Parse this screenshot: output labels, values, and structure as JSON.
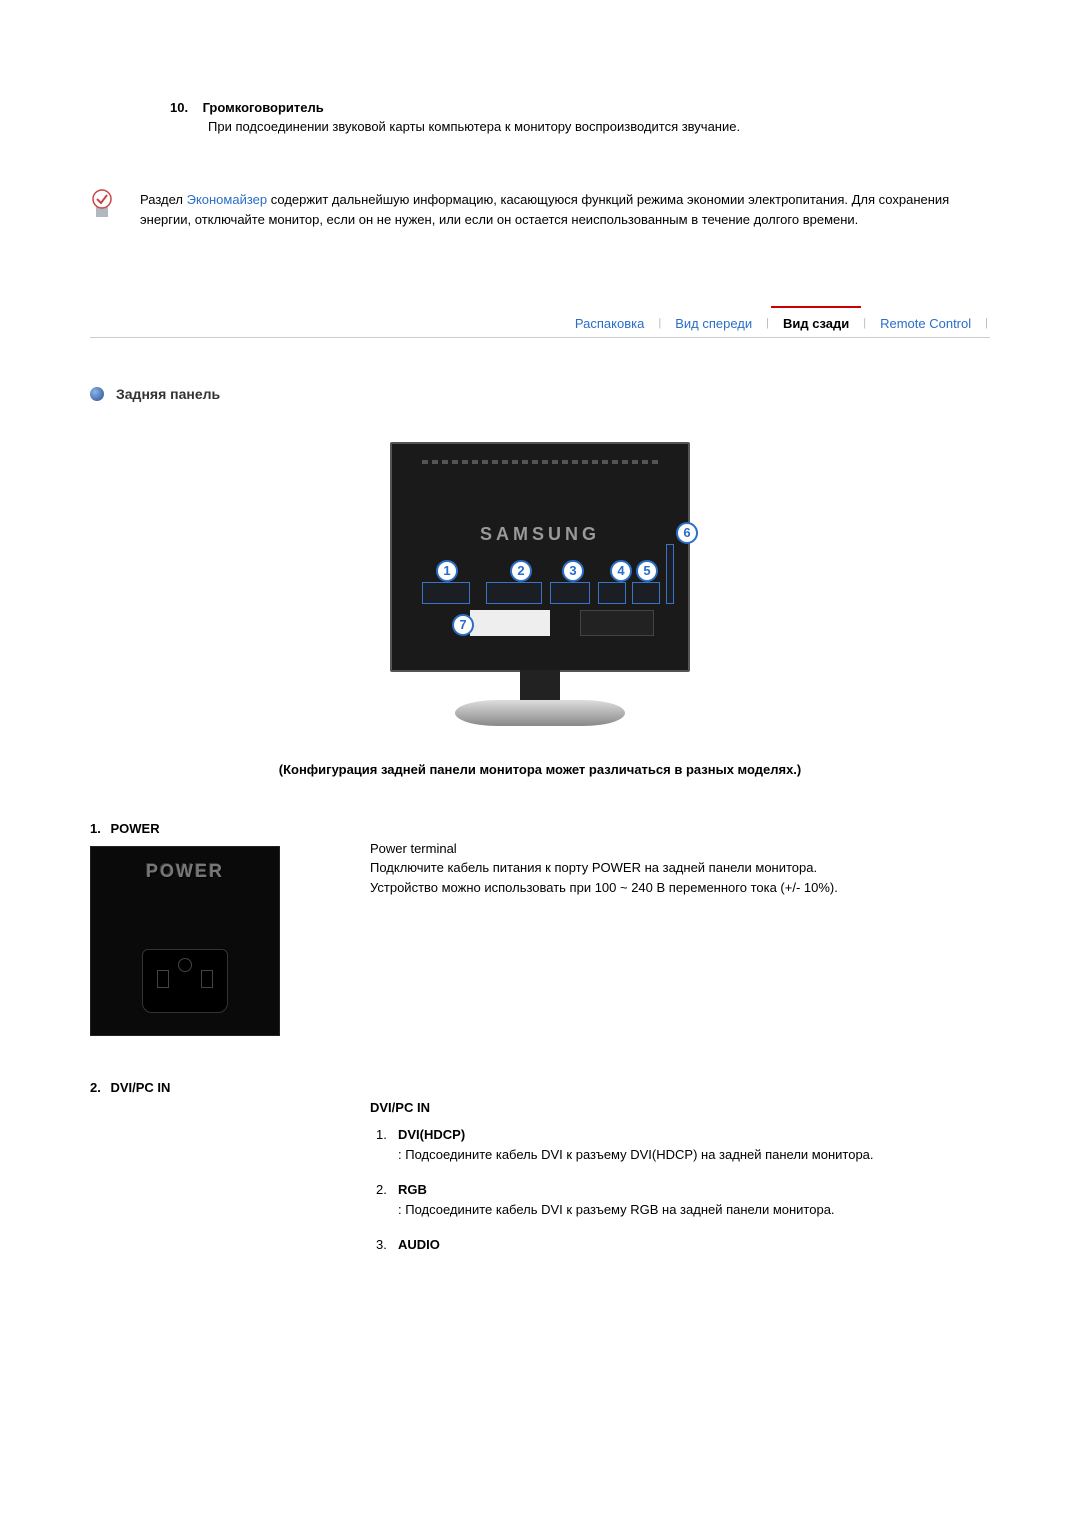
{
  "speaker": {
    "number": "10.",
    "title": "Громкоговоритель",
    "desc": "При подсоединении звуковой карты компьютера к монитору воспроизводится звучание."
  },
  "info": {
    "pre_text": "Раздел ",
    "link_text": "Экономайзер",
    "post_text": " содержит дальнейшую информацию, касающуюся функций режима экономии электропитания. Для сохранения энергии, отключайте монитор, если он не нужен, или если он остается неиспользованным в течение долгого времени."
  },
  "tabs": {
    "t1": "Распаковка",
    "t2": "Вид спереди",
    "t3": "Вид сзади",
    "t4": "Remote Control"
  },
  "section": {
    "title": "Задняя панель"
  },
  "monitor": {
    "brand": "SAMSUNG",
    "c1": "1",
    "c2": "2",
    "c3": "3",
    "c4": "4",
    "c5": "5",
    "c6": "6",
    "c7": "7"
  },
  "config_note": "(Конфигурация задней панели монитора может различаться в разных моделях.)",
  "power": {
    "num": "1.",
    "title": "POWER",
    "img_label": "POWER",
    "desc1": "Power terminal",
    "desc2": "Подключите кабель питания к порту POWER на задней панели монитора.",
    "desc3": "Устройство можно использовать при 100 ~ 240 В переменного тока (+/- 10%)."
  },
  "dvi": {
    "num": "2.",
    "title": "DVI/PC IN",
    "right_title": "DVI/PC IN",
    "items": [
      {
        "n": "1.",
        "t": "DVI(HDCP)",
        "d": ": Подсоедините кабель DVI к разъему DVI(HDCP) на задней панели монитора."
      },
      {
        "n": "2.",
        "t": "RGB",
        "d": ": Подсоедините кабель DVI к разъему RGB на задней панели монитора."
      },
      {
        "n": "3.",
        "t": "AUDIO",
        "d": ""
      }
    ]
  },
  "colors": {
    "link": "#2a6ec8",
    "active_tab_bar": "#c00"
  }
}
